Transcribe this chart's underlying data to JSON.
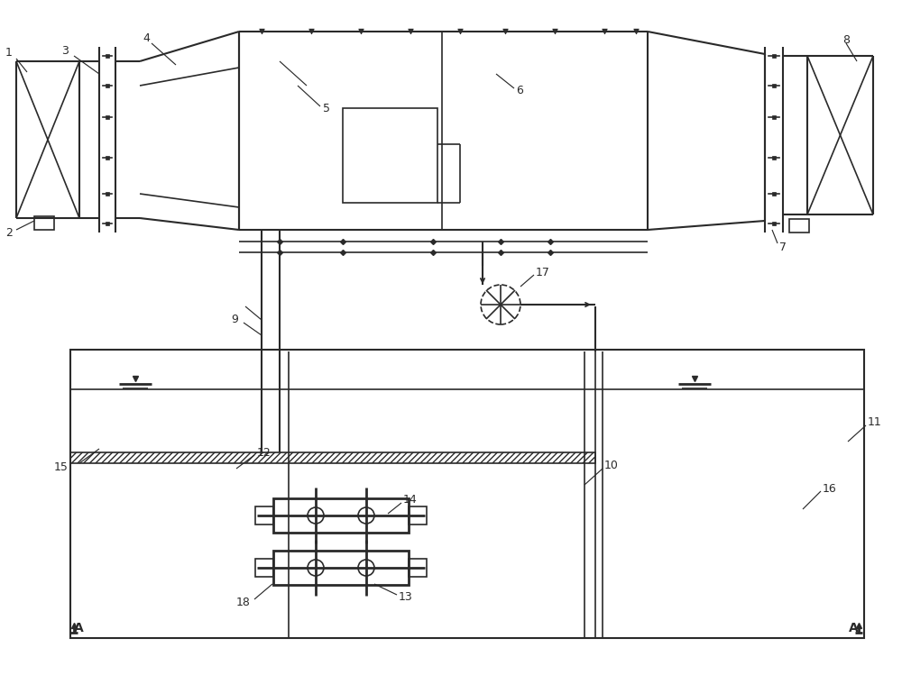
{
  "bg_color": "#ffffff",
  "line_color": "#2a2a2a",
  "line_width": 1.2
}
